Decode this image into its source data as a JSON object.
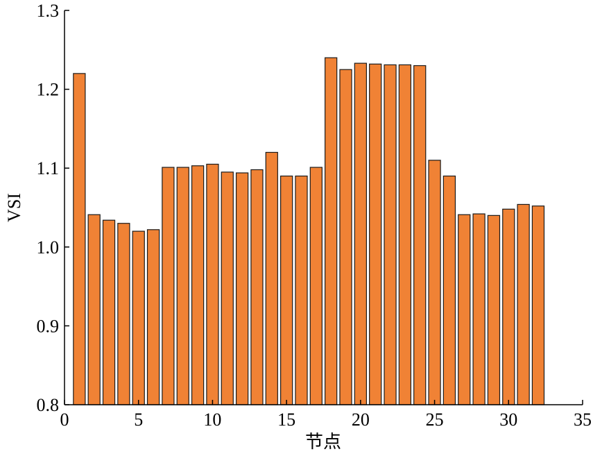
{
  "chart_data": {
    "type": "bar",
    "title": "",
    "xlabel": "节点",
    "ylabel": "VSI",
    "xlim": [
      0,
      35
    ],
    "ylim": [
      0.8,
      1.3
    ],
    "xticks": [
      0,
      5,
      10,
      15,
      20,
      25,
      30,
      35
    ],
    "yticks": [
      0.8,
      0.9,
      1.0,
      1.1,
      1.2,
      1.3
    ],
    "ytick_labels": [
      "0.8",
      "0.9",
      "1.0",
      "1.1",
      "1.2",
      "1.3"
    ],
    "xtick_labels": [
      "0",
      "5",
      "10",
      "15",
      "20",
      "25",
      "30",
      "35"
    ],
    "grid": false,
    "bar_color": "#F08235",
    "categories": [
      1,
      2,
      3,
      4,
      5,
      6,
      7,
      8,
      9,
      10,
      11,
      12,
      13,
      14,
      15,
      16,
      17,
      18,
      19,
      20,
      21,
      22,
      23,
      24,
      25,
      26,
      27,
      28,
      29,
      30,
      31,
      32
    ],
    "values": [
      1.22,
      1.041,
      1.034,
      1.03,
      1.02,
      1.022,
      1.101,
      1.101,
      1.103,
      1.105,
      1.095,
      1.094,
      1.098,
      1.12,
      1.09,
      1.09,
      1.101,
      1.24,
      1.225,
      1.233,
      1.232,
      1.231,
      1.231,
      1.23,
      1.11,
      1.09,
      1.041,
      1.042,
      1.04,
      1.048,
      1.054,
      1.052
    ]
  }
}
